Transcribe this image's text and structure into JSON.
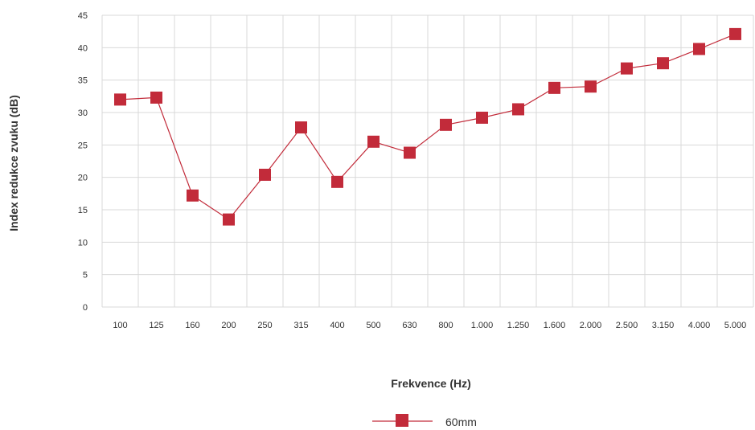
{
  "chart_data": {
    "type": "line",
    "title": "",
    "xlabel": "Frekvence (Hz)",
    "ylabel": "Index redukce zvuku (dB)",
    "categories": [
      "100",
      "125",
      "160",
      "200",
      "250",
      "315",
      "400",
      "500",
      "630",
      "800",
      "1.000",
      "1.250",
      "1.600",
      "2.000",
      "2.500",
      "3.150",
      "4.000",
      "5.000"
    ],
    "ylim": [
      0,
      45
    ],
    "yticks": [
      0,
      5,
      10,
      15,
      20,
      25,
      30,
      35,
      40,
      45
    ],
    "grid": true,
    "legend_position": "bottom",
    "series": [
      {
        "name": "60mm",
        "color": "#c22b3a",
        "marker": "square",
        "values": [
          32.0,
          32.3,
          17.2,
          13.5,
          20.4,
          27.7,
          19.3,
          25.5,
          23.8,
          28.1,
          29.2,
          30.5,
          33.8,
          34.0,
          36.8,
          37.6,
          39.8,
          42.1
        ]
      }
    ]
  }
}
